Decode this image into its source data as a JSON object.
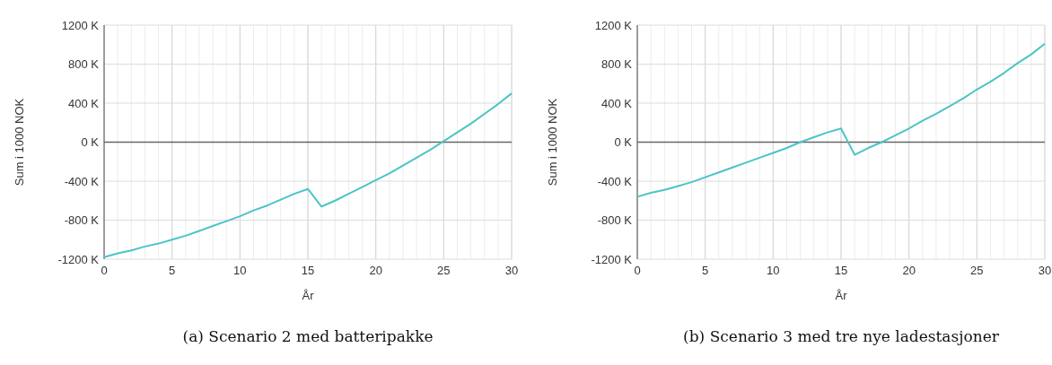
{
  "chart_data": [
    {
      "type": "line",
      "title": "(a) Scenario 2 med batteripakke",
      "xlabel": "År",
      "ylabel": "Sum i 1000 NOK",
      "x": [
        0,
        1,
        2,
        3,
        4,
        5,
        6,
        7,
        8,
        9,
        10,
        11,
        12,
        13,
        14,
        15,
        16,
        17,
        18,
        19,
        20,
        21,
        22,
        23,
        24,
        25,
        26,
        27,
        28,
        29,
        30
      ],
      "series": [
        {
          "color": "#4cc4c8",
          "values": [
            -1180,
            -1140,
            -1110,
            -1070,
            -1040,
            -1000,
            -960,
            -910,
            -860,
            -810,
            -760,
            -700,
            -650,
            -590,
            -530,
            -480,
            -660,
            -600,
            -530,
            -460,
            -390,
            -320,
            -240,
            -160,
            -80,
            10,
            100,
            190,
            290,
            390,
            500
          ]
        }
      ],
      "xlim": [
        0,
        30
      ],
      "xticks": [
        0,
        5,
        10,
        15,
        20,
        25,
        30
      ],
      "ylim": [
        -1200,
        1200
      ],
      "yticks": [
        {
          "value": -1200,
          "label": "-1200 K"
        },
        {
          "value": -800,
          "label": "-800 K"
        },
        {
          "value": -400,
          "label": "-400 K"
        },
        {
          "value": 0,
          "label": "0 K"
        },
        {
          "value": 400,
          "label": "400 K"
        },
        {
          "value": 800,
          "label": "800 K"
        },
        {
          "value": 1200,
          "label": "1200 K"
        }
      ],
      "grid": true,
      "marker": "none",
      "line_style": "solid",
      "ref_lines": [
        {
          "axis": "y",
          "value": 0,
          "color": "#666666"
        }
      ]
    },
    {
      "type": "line",
      "title": "(b) Scenario 3 med tre nye ladestasjoner",
      "xlabel": "År",
      "ylabel": "Sum i 1000 NOK",
      "x": [
        0,
        1,
        2,
        3,
        4,
        5,
        6,
        7,
        8,
        9,
        10,
        11,
        12,
        13,
        14,
        15,
        16,
        17,
        18,
        19,
        20,
        21,
        22,
        23,
        24,
        25,
        26,
        27,
        28,
        29,
        30
      ],
      "series": [
        {
          "color": "#4cc4c8",
          "values": [
            -560,
            -520,
            -490,
            -450,
            -410,
            -360,
            -310,
            -260,
            -210,
            -160,
            -110,
            -60,
            0,
            50,
            100,
            140,
            -130,
            -60,
            0,
            70,
            140,
            220,
            290,
            370,
            450,
            540,
            620,
            710,
            810,
            900,
            1010
          ]
        }
      ],
      "xlim": [
        0,
        30
      ],
      "xticks": [
        0,
        5,
        10,
        15,
        20,
        25,
        30
      ],
      "ylim": [
        -1200,
        1200
      ],
      "yticks": [
        {
          "value": -1200,
          "label": "-1200 K"
        },
        {
          "value": -800,
          "label": "-800 K"
        },
        {
          "value": -400,
          "label": "-400 K"
        },
        {
          "value": 0,
          "label": "0 K"
        },
        {
          "value": 400,
          "label": "400 K"
        },
        {
          "value": 800,
          "label": "800 K"
        },
        {
          "value": 1200,
          "label": "1200 K"
        }
      ],
      "grid": true,
      "marker": "none",
      "line_style": "solid",
      "ref_lines": [
        {
          "axis": "y",
          "value": 0,
          "color": "#666666"
        }
      ]
    }
  ]
}
